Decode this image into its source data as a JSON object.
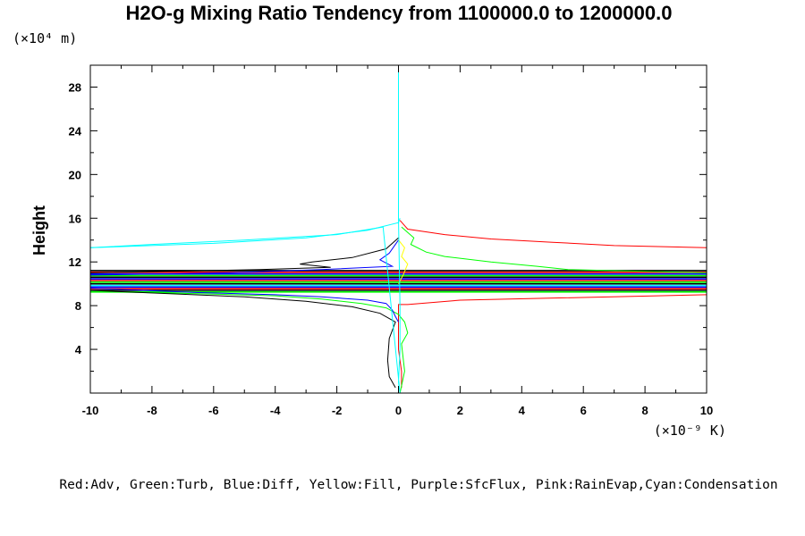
{
  "chart_data": {
    "type": "line",
    "title": "H2O-g Mixing Ratio Tendency from 1100000.0 to 1200000.0",
    "ylabel": "Height",
    "y_multiplier": "(×10⁴ m)",
    "x_multiplier": "(×10⁻⁹ K)",
    "xlim": [
      -10,
      10
    ],
    "ylim": [
      0,
      30
    ],
    "x_ticks": [
      -10,
      -8,
      -6,
      -4,
      -2,
      0,
      2,
      4,
      6,
      8,
      10
    ],
    "x_tick_labels": [
      "-10",
      "-8",
      "-6",
      "-4",
      "-2",
      "0",
      "2",
      "4",
      "6",
      "8",
      "10"
    ],
    "y_ticks": [
      4,
      8,
      12,
      16,
      20,
      24,
      28
    ],
    "y_tick_labels": [
      "4",
      "8",
      "12",
      "16",
      "20",
      "24",
      "28"
    ],
    "grid": false,
    "legend_text": "Red:Adv, Green:Turb, Blue:Diff, Yellow:Fill, Purple:SfcFlux, Pink:RainEvap,Cyan:Condensation",
    "series": [
      {
        "color": "#ff0000",
        "x": [
          0.1,
          0.1,
          0.0,
          0.0,
          0.3,
          2.0,
          10.0
        ],
        "y": [
          0.5,
          2,
          4,
          8.1,
          8.1,
          8.5,
          9.0
        ]
      },
      {
        "color": "#ff0000",
        "x": [
          0.05,
          0.3,
          1.5,
          3.0,
          5.0,
          7.0,
          10.0
        ],
        "y": [
          15.8,
          15.0,
          14.5,
          14.1,
          13.8,
          13.5,
          13.3
        ]
      },
      {
        "color": "#00ff00",
        "x": [
          0.05,
          0.2,
          0.1,
          0.3,
          0.2,
          0.0,
          -0.4,
          -1.2,
          -2.5,
          -4.0,
          -6.5,
          -10.0
        ],
        "y": [
          0.0,
          2.0,
          4.5,
          5.5,
          6.5,
          7.2,
          7.8,
          8.2,
          8.6,
          8.9,
          9.1,
          9.3
        ]
      },
      {
        "color": "#00ff00",
        "x": [
          0.1,
          0.5,
          0.4,
          0.9,
          1.5,
          3.0,
          4.5,
          5.5,
          10.0
        ],
        "y": [
          15.2,
          14.2,
          13.6,
          12.9,
          12.5,
          12.0,
          11.6,
          11.3,
          11.0
        ]
      },
      {
        "color": "#0000ff",
        "x": [
          0.0,
          -0.1,
          -0.2,
          -0.4,
          -1.0,
          -2.5,
          -4.0,
          -6.5,
          -10.0
        ],
        "y": [
          6.5,
          7.0,
          7.6,
          8.2,
          8.5,
          8.8,
          9.0,
          9.2,
          9.6
        ]
      },
      {
        "color": "#0000ff",
        "x": [
          0.0,
          -0.3,
          -0.6,
          -0.2,
          -2.5,
          -5.5,
          -10.0
        ],
        "y": [
          14.0,
          12.8,
          12.2,
          11.6,
          11.3,
          11.0,
          10.8
        ]
      },
      {
        "color": "#000000",
        "x": [
          -0.1,
          -0.3,
          -0.35,
          -0.3,
          -0.1,
          -0.6,
          -1.5,
          -3.0,
          -5.0,
          -10.0
        ],
        "y": [
          0.5,
          1.5,
          3.0,
          5.0,
          6.5,
          7.3,
          7.9,
          8.4,
          8.8,
          9.4
        ]
      },
      {
        "color": "#000000",
        "x": [
          0.0,
          -0.4,
          -1.5,
          -2.8,
          -3.2,
          -2.2,
          -4.5,
          -10.0
        ],
        "y": [
          14.2,
          13.2,
          12.4,
          12.0,
          11.8,
          11.5,
          11.3,
          11.0
        ]
      },
      {
        "color": "#ffff00",
        "x": [
          0.0,
          0.15,
          0.3,
          0.1,
          0.2,
          0.0
        ],
        "y": [
          10.0,
          10.8,
          11.8,
          12.5,
          13.3,
          14.0
        ]
      },
      {
        "color": "#00ffff",
        "x": [
          0.0,
          0.0,
          0.05,
          0.05,
          0.0,
          0.05,
          -0.5,
          -2.0,
          -5.0,
          -8.0,
          -10.0
        ],
        "y": [
          30.0,
          16.0,
          8.0,
          4.0,
          1.0,
          0.0,
          15.2,
          14.5,
          14.0,
          13.6,
          13.3
        ]
      },
      {
        "color": "#00ffff",
        "x": [
          -10,
          -6,
          -3,
          -1,
          0,
          0.05
        ],
        "y": [
          13.3,
          13.7,
          14.2,
          14.9,
          15.6,
          16.0
        ]
      }
    ],
    "bands": [
      {
        "color": "#00ff00",
        "y": 9.25
      },
      {
        "color": "#000000",
        "y": 9.4
      },
      {
        "color": "#ff0000",
        "y": 9.55
      },
      {
        "color": "#0000ff",
        "y": 9.7
      },
      {
        "color": "#00ffff",
        "y": 9.85
      },
      {
        "color": "#000000",
        "y": 10.0
      },
      {
        "color": "#00ff00",
        "y": 10.15
      },
      {
        "color": "#ff0000",
        "y": 10.3
      },
      {
        "color": "#0000ff",
        "y": 10.45
      },
      {
        "color": "#000000",
        "y": 10.6
      },
      {
        "color": "#00ff00",
        "y": 10.75
      },
      {
        "color": "#0000ff",
        "y": 10.9
      },
      {
        "color": "#ff0000",
        "y": 11.05
      },
      {
        "color": "#000000",
        "y": 11.2
      }
    ]
  }
}
